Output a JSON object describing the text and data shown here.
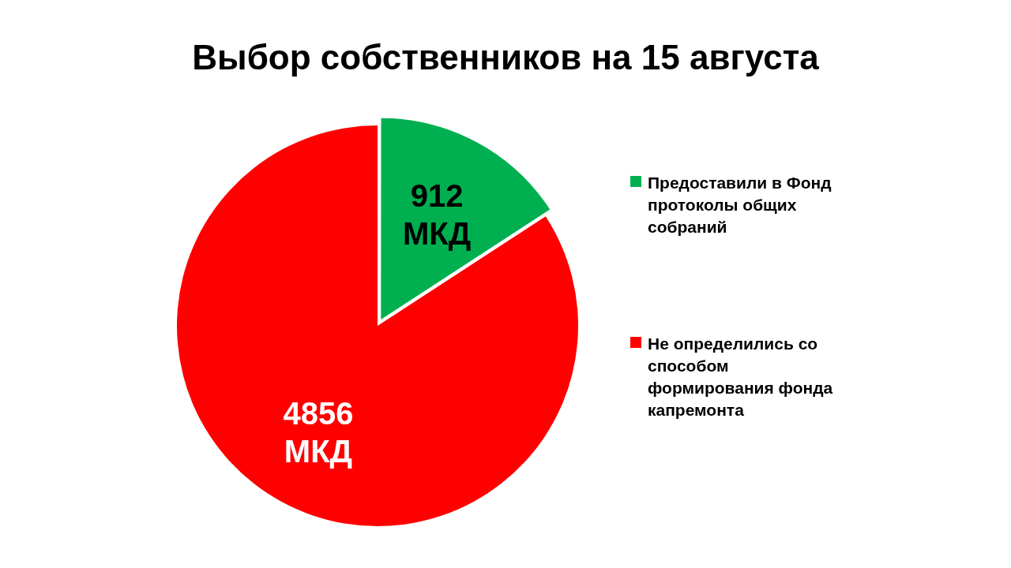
{
  "chart_data": {
    "type": "pie",
    "title": "Выбор собственников на 15 августа",
    "categories": [
      "Предоставили в Фонд протоколы общих собраний",
      "Не определились со способом формирования фонда капремонта"
    ],
    "values": [
      912,
      4856
    ],
    "value_labels": [
      "912 МКД",
      "4856 МКД"
    ],
    "colors": [
      "#00b050",
      "#ff0000"
    ],
    "legend": "right"
  }
}
